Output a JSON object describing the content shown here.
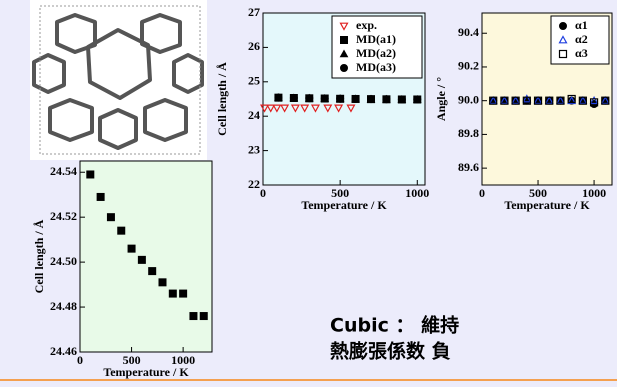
{
  "chart_data": [
    {
      "type": "scatter",
      "ylabel": "Cell length / Å",
      "xlabel": "Temperature / K",
      "xlim": [
        0,
        1050
      ],
      "ylim": [
        22,
        27
      ],
      "xticks": [
        0,
        500,
        1000
      ],
      "yticks": [
        22,
        23,
        24,
        25,
        26,
        27
      ],
      "background": "#e4f8fb",
      "legend": "upper right",
      "series": [
        {
          "name": "exp.",
          "color": "#e02020",
          "marker": "triangle-down-open",
          "x": [
            10,
            50,
            90,
            140,
            210,
            270,
            340,
            420,
            490,
            570
          ],
          "values": [
            24.24,
            24.24,
            24.24,
            24.24,
            24.24,
            24.24,
            24.24,
            24.24,
            24.24,
            24.24
          ]
        },
        {
          "name": "MD(a1)",
          "color": "#000000",
          "marker": "square",
          "x": [
            100,
            200,
            300,
            400,
            500,
            600,
            700,
            800,
            900,
            1000
          ],
          "values": [
            24.539,
            24.529,
            24.52,
            24.514,
            24.506,
            24.501,
            24.496,
            24.491,
            24.486,
            24.486
          ]
        },
        {
          "name": "MD(a2)",
          "color": "#000000",
          "marker": "triangle",
          "x": [
            100,
            200,
            300,
            400,
            500,
            600,
            700,
            800,
            900,
            1000
          ],
          "values": [
            24.539,
            24.529,
            24.52,
            24.514,
            24.506,
            24.501,
            24.496,
            24.491,
            24.486,
            24.486
          ]
        },
        {
          "name": "MD(a3)",
          "color": "#000000",
          "marker": "circle",
          "x": [
            100,
            200,
            300,
            400,
            500,
            600,
            700,
            800,
            900,
            1000
          ],
          "values": [
            24.539,
            24.529,
            24.52,
            24.514,
            24.506,
            24.501,
            24.496,
            24.491,
            24.486,
            24.486
          ]
        }
      ]
    },
    {
      "type": "scatter",
      "ylabel": "Angle / °",
      "xlabel": "Temperature / K",
      "xlim": [
        0,
        1160
      ],
      "ylim": [
        89.5,
        90.52
      ],
      "xticks": [
        0,
        500,
        1000
      ],
      "yticks": [
        89.6,
        89.8,
        {
          "value": 90,
          "label": "90.0"
        },
        90.2,
        90.4
      ],
      "background": "#fdf8dc",
      "legend": "upper right",
      "series": [
        {
          "name": "α1",
          "color": "#000000",
          "marker": "circle",
          "x": [
            100,
            200,
            300,
            400,
            500,
            600,
            700,
            800,
            900,
            1000,
            1100
          ],
          "values": [
            90.0,
            90.0,
            90.0,
            90.0,
            90.0,
            90.0,
            90.0,
            90.0,
            90.0,
            89.98,
            90.0
          ]
        },
        {
          "name": "α2",
          "color": "#2040e0",
          "marker": "triangle-open",
          "x": [
            100,
            200,
            300,
            400,
            500,
            600,
            700,
            800,
            900,
            1000,
            1100
          ],
          "values": [
            90.0,
            90.0,
            90.0,
            90.01,
            90.0,
            90.0,
            90.0,
            90.0,
            90.0,
            90.0,
            90.0
          ]
        },
        {
          "name": "α3",
          "color": "#000000",
          "marker": "square-open",
          "x": [
            100,
            200,
            300,
            400,
            500,
            600,
            700,
            800,
            900,
            1000,
            1100
          ],
          "values": [
            90.0,
            90.0,
            90.0,
            90.0,
            90.0,
            90.0,
            90.0,
            90.01,
            90.0,
            89.99,
            90.0
          ]
        }
      ]
    },
    {
      "type": "scatter",
      "ylabel": "Cell length / Å",
      "xlabel": "Temperature / K",
      "xlim": [
        0,
        1280
      ],
      "ylim": [
        24.46,
        24.545
      ],
      "xticks": [
        0,
        500,
        1000
      ],
      "yticks": [
        24.46,
        24.48,
        {
          "value": 24.5,
          "label": "24.50"
        },
        24.52,
        24.54
      ],
      "background": "#e8fae8",
      "series": [
        {
          "color": "#000000",
          "marker": "square",
          "x": [
            100,
            200,
            300,
            400,
            500,
            600,
            700,
            800,
            900,
            1000,
            1100,
            1200
          ],
          "values": [
            24.539,
            24.529,
            24.52,
            24.514,
            24.506,
            24.501,
            24.496,
            24.491,
            24.486,
            24.486,
            24.476,
            24.476
          ]
        }
      ]
    }
  ],
  "notes": [
    "Cubic ： 維持",
    "熱膨張係数 負"
  ]
}
